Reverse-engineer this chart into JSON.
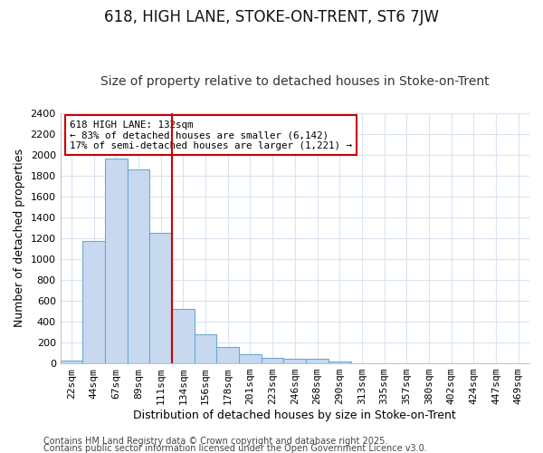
{
  "title1": "618, HIGH LANE, STOKE-ON-TRENT, ST6 7JW",
  "title2": "Size of property relative to detached houses in Stoke-on-Trent",
  "xlabel": "Distribution of detached houses by size in Stoke-on-Trent",
  "ylabel": "Number of detached properties",
  "categories": [
    "22sqm",
    "44sqm",
    "67sqm",
    "89sqm",
    "111sqm",
    "134sqm",
    "156sqm",
    "178sqm",
    "201sqm",
    "223sqm",
    "246sqm",
    "268sqm",
    "290sqm",
    "313sqm",
    "335sqm",
    "357sqm",
    "380sqm",
    "402sqm",
    "424sqm",
    "447sqm",
    "469sqm"
  ],
  "values": [
    30,
    1170,
    1960,
    1860,
    1250,
    520,
    275,
    155,
    90,
    50,
    45,
    40,
    15,
    5,
    3,
    2,
    1,
    1,
    1,
    1,
    1
  ],
  "bar_color": "#c8d9ef",
  "bar_edge_color": "#6aaad4",
  "vline_x": 5,
  "vline_color": "#cc0000",
  "annotation_line1": "618 HIGH LANE: 132sqm",
  "annotation_line2": "← 83% of detached houses are smaller (6,142)",
  "annotation_line3": "17% of semi-detached houses are larger (1,221) →",
  "annotation_box_color": "#cc0000",
  "footer1": "Contains HM Land Registry data © Crown copyright and database right 2025.",
  "footer2": "Contains public sector information licensed under the Open Government Licence v3.0.",
  "ylim": [
    0,
    2400
  ],
  "yticks": [
    0,
    200,
    400,
    600,
    800,
    1000,
    1200,
    1400,
    1600,
    1800,
    2000,
    2200,
    2400
  ],
  "background_color": "#ffffff",
  "grid_color": "#d8e4f0",
  "title_fontsize": 12,
  "subtitle_fontsize": 10,
  "tick_fontsize": 8,
  "ylabel_fontsize": 9,
  "xlabel_fontsize": 9,
  "footer_fontsize": 7
}
